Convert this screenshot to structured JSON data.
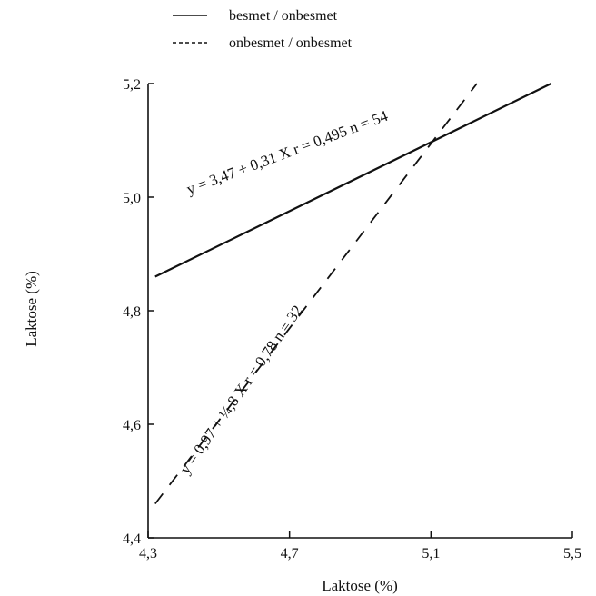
{
  "chart_data": {
    "type": "line",
    "xlabel": "Laktose (%)",
    "ylabel": "Laktose (%)",
    "xlim": [
      4.3,
      5.5
    ],
    "ylim": [
      4.4,
      5.2
    ],
    "x_ticks": [
      "4,3",
      "4,7",
      "5,1",
      "5,5"
    ],
    "x_tick_values": [
      4.3,
      4.7,
      5.1,
      5.5
    ],
    "y_ticks": [
      "4,4",
      "4,6",
      "4,8",
      "5,0",
      "5,2"
    ],
    "y_tick_values": [
      4.4,
      4.6,
      4.8,
      5.0,
      5.2
    ],
    "grid": false,
    "legend_position": "top",
    "series": [
      {
        "name": "besmet / onbesmet",
        "style": "solid",
        "x": [
          4.32,
          5.44
        ],
        "y": [
          4.86,
          5.2
        ],
        "annotation": "y = 3,47 + 0,31 X r = 0,495 n = 54"
      },
      {
        "name": "onbesmet / onbesmet",
        "style": "dashed",
        "x": [
          4.32,
          5.23
        ],
        "y": [
          4.46,
          5.2
        ],
        "annotation": "y = 0,97 + ¼,8 X r = 0,78 n = 32"
      }
    ]
  },
  "colors": {
    "line": "#111111",
    "axis": "#111111",
    "background": "#ffffff"
  }
}
